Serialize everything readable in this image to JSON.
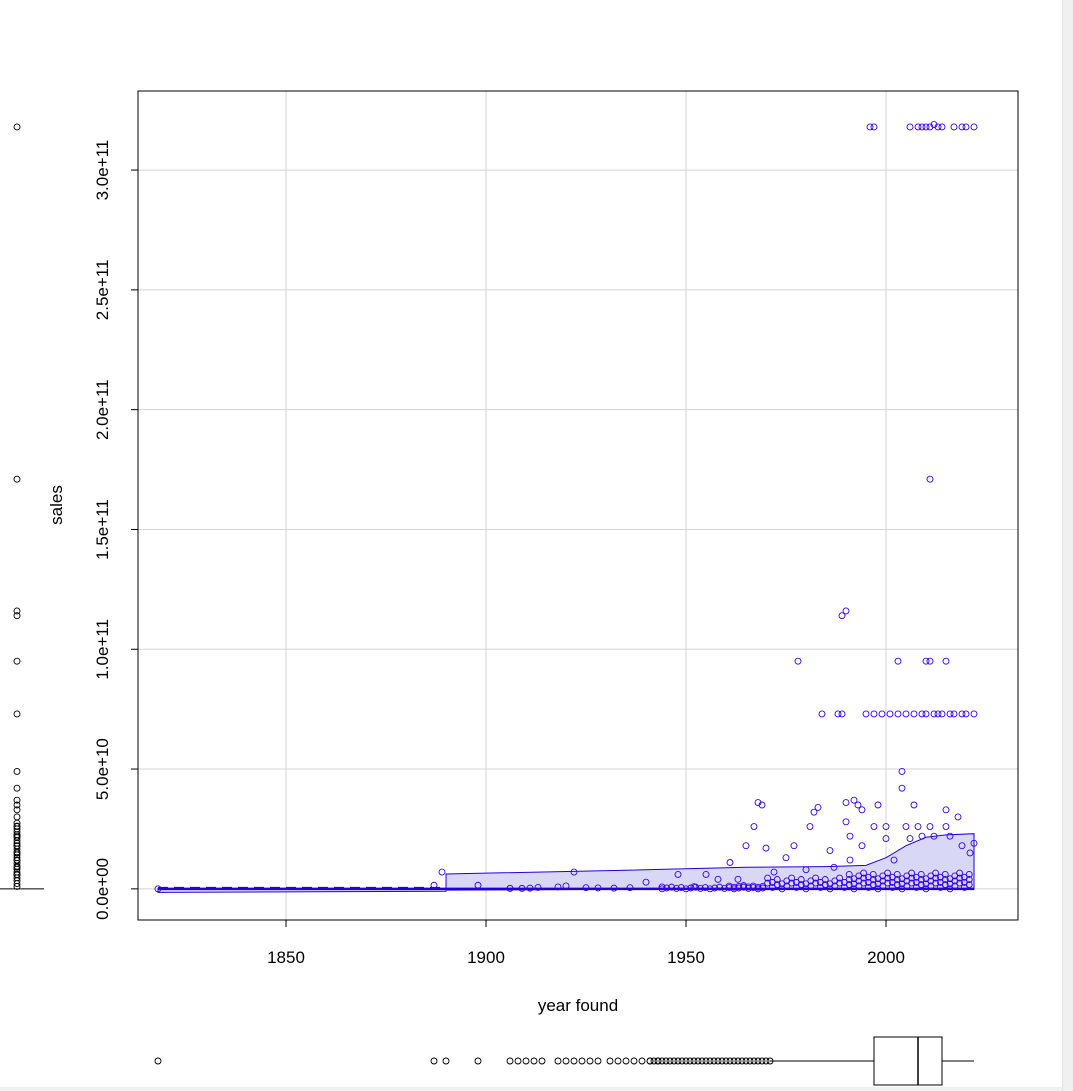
{
  "chart_data": {
    "type": "scatter",
    "title": "",
    "xlabel": "year found",
    "ylabel": "sales",
    "xlim": [
      1813,
      2033
    ],
    "ylim": [
      -13000000000,
      333000000000
    ],
    "x_ticks": [
      1850,
      1900,
      1950,
      2000
    ],
    "y_ticks": [
      0,
      50000000000,
      100000000000,
      150000000000,
      200000000000,
      250000000000,
      300000000000
    ],
    "x_tick_labels": [
      "1850",
      "1900",
      "1950",
      "2000"
    ],
    "y_tick_labels": [
      "0.0e+00",
      "5.0e+10",
      "1.0e+11",
      "1.5e+11",
      "2.0e+11",
      "2.5e+11",
      "3.0e+11"
    ],
    "grid": true,
    "colors": {
      "points": "#3300ee",
      "band_fill": "#d8d8f6",
      "band_line": "#2200dd",
      "grid": "#d3d3d3"
    },
    "points": [
      [
        1818,
        0
      ],
      [
        1887,
        1500000000
      ],
      [
        1889,
        7000000000
      ],
      [
        1898,
        1500000000
      ],
      [
        1906,
        200000000
      ],
      [
        1909,
        200000000
      ],
      [
        1911,
        300000000
      ],
      [
        1913,
        600000000
      ],
      [
        1918,
        800000000
      ],
      [
        1920,
        1200000000
      ],
      [
        1922,
        7000000000
      ],
      [
        1925,
        500000000
      ],
      [
        1928,
        400000000
      ],
      [
        1932,
        300000000
      ],
      [
        1936,
        500000000
      ],
      [
        1940,
        2800000000
      ],
      [
        1944,
        800000000
      ],
      [
        1948,
        6000000000
      ],
      [
        1952,
        900000000
      ],
      [
        1955,
        6000000000
      ],
      [
        1958,
        4000000000
      ],
      [
        1961,
        11000000000
      ],
      [
        1963,
        4000000000
      ],
      [
        1965,
        18000000000
      ],
      [
        1967,
        26000000000
      ],
      [
        1968,
        36000000000
      ],
      [
        1969,
        35000000000
      ],
      [
        1970,
        17000000000
      ],
      [
        1972,
        7000000000
      ],
      [
        1975,
        13000000000
      ],
      [
        1977,
        18000000000
      ],
      [
        1978,
        95000000000
      ],
      [
        1980,
        8000000000
      ],
      [
        1981,
        26000000000
      ],
      [
        1982,
        32000000000
      ],
      [
        1983,
        34000000000
      ],
      [
        1984,
        73000000000
      ],
      [
        1986,
        16000000000
      ],
      [
        1987,
        9000000000
      ],
      [
        1988,
        73000000000
      ],
      [
        1989,
        73000000000
      ],
      [
        1989,
        114000000000
      ],
      [
        1990,
        116000000000
      ],
      [
        1990,
        28000000000
      ],
      [
        1990,
        36000000000
      ],
      [
        1991,
        22000000000
      ],
      [
        1991,
        12000000000
      ],
      [
        1992,
        37000000000
      ],
      [
        1993,
        35000000000
      ],
      [
        1994,
        33000000000
      ],
      [
        1994,
        18000000000
      ],
      [
        1995,
        73000000000
      ],
      [
        1996,
        318000000000
      ],
      [
        1997,
        318000000000
      ],
      [
        1997,
        73000000000
      ],
      [
        1997,
        26000000000
      ],
      [
        1998,
        35000000000
      ],
      [
        1999,
        73000000000
      ],
      [
        2000,
        21000000000
      ],
      [
        2000,
        26000000000
      ],
      [
        2001,
        73000000000
      ],
      [
        2002,
        12000000000
      ],
      [
        2003,
        95000000000
      ],
      [
        2003,
        73000000000
      ],
      [
        2004,
        49000000000
      ],
      [
        2004,
        42000000000
      ],
      [
        2005,
        26000000000
      ],
      [
        2005,
        73000000000
      ],
      [
        2006,
        318000000000
      ],
      [
        2006,
        21000000000
      ],
      [
        2007,
        73000000000
      ],
      [
        2007,
        35000000000
      ],
      [
        2008,
        318000000000
      ],
      [
        2008,
        26000000000
      ],
      [
        2009,
        318000000000
      ],
      [
        2009,
        73000000000
      ],
      [
        2009,
        22000000000
      ],
      [
        2010,
        318000000000
      ],
      [
        2010,
        95000000000
      ],
      [
        2010,
        73000000000
      ],
      [
        2011,
        318000000000
      ],
      [
        2011,
        171000000000
      ],
      [
        2011,
        95000000000
      ],
      [
        2011,
        26000000000
      ],
      [
        2012,
        319000000000
      ],
      [
        2012,
        73000000000
      ],
      [
        2012,
        22000000000
      ],
      [
        2013,
        318000000000
      ],
      [
        2013,
        73000000000
      ],
      [
        2014,
        318000000000
      ],
      [
        2014,
        73000000000
      ],
      [
        2015,
        95000000000
      ],
      [
        2015,
        33000000000
      ],
      [
        2015,
        26000000000
      ],
      [
        2016,
        73000000000
      ],
      [
        2016,
        22000000000
      ],
      [
        2017,
        318000000000
      ],
      [
        2017,
        73000000000
      ],
      [
        2018,
        30000000000
      ],
      [
        2019,
        318000000000
      ],
      [
        2019,
        73000000000
      ],
      [
        2019,
        18000000000
      ],
      [
        2020,
        318000000000
      ],
      [
        2020,
        73000000000
      ],
      [
        2021,
        15000000000
      ],
      [
        2022,
        318000000000
      ],
      [
        2022,
        73000000000
      ],
      [
        2022,
        19000000000
      ]
    ],
    "band": {
      "years": [
        1818,
        1890,
        1890,
        1935,
        1955,
        1965,
        1985,
        1995,
        2000,
        2005,
        2010,
        2015,
        2022
      ],
      "upper": [
        100000000,
        100000000,
        6200000000,
        7800000000,
        8600000000,
        9000000000,
        9300000000,
        9800000000,
        13000000000,
        18000000000,
        21500000000,
        22500000000,
        23000000000
      ],
      "lower": [
        -1500000000,
        -1000000000,
        -500000000,
        -200000000,
        -200000000,
        -200000000,
        -200000000,
        -200000000,
        -200000000,
        -200000000,
        -200000000,
        -200000000,
        -200000000
      ]
    },
    "x_marginal": {
      "points": [
        1818,
        1887,
        1890,
        1898,
        1906,
        1908,
        1910,
        1912,
        1914,
        1918,
        1920,
        1922,
        1924,
        1926,
        1928,
        1931,
        1933,
        1935,
        1937,
        1939,
        1941,
        1943
      ],
      "points_band": [
        1941,
        1971
      ],
      "whisker_low": 1971,
      "q1": 1997,
      "median": 2008,
      "q3": 2014,
      "whisker_high": 2022
    },
    "y_marginal": {
      "points": [
        318000000000,
        171000000000,
        116000000000,
        114000000000,
        95000000000,
        73000000000,
        49000000000,
        42000000000,
        37000000000,
        35000000000,
        33000000000,
        30000000000,
        26000000000,
        22000000000,
        18000000000,
        15000000000,
        12000000000,
        9000000000,
        6000000000
      ],
      "median": 0
    }
  }
}
